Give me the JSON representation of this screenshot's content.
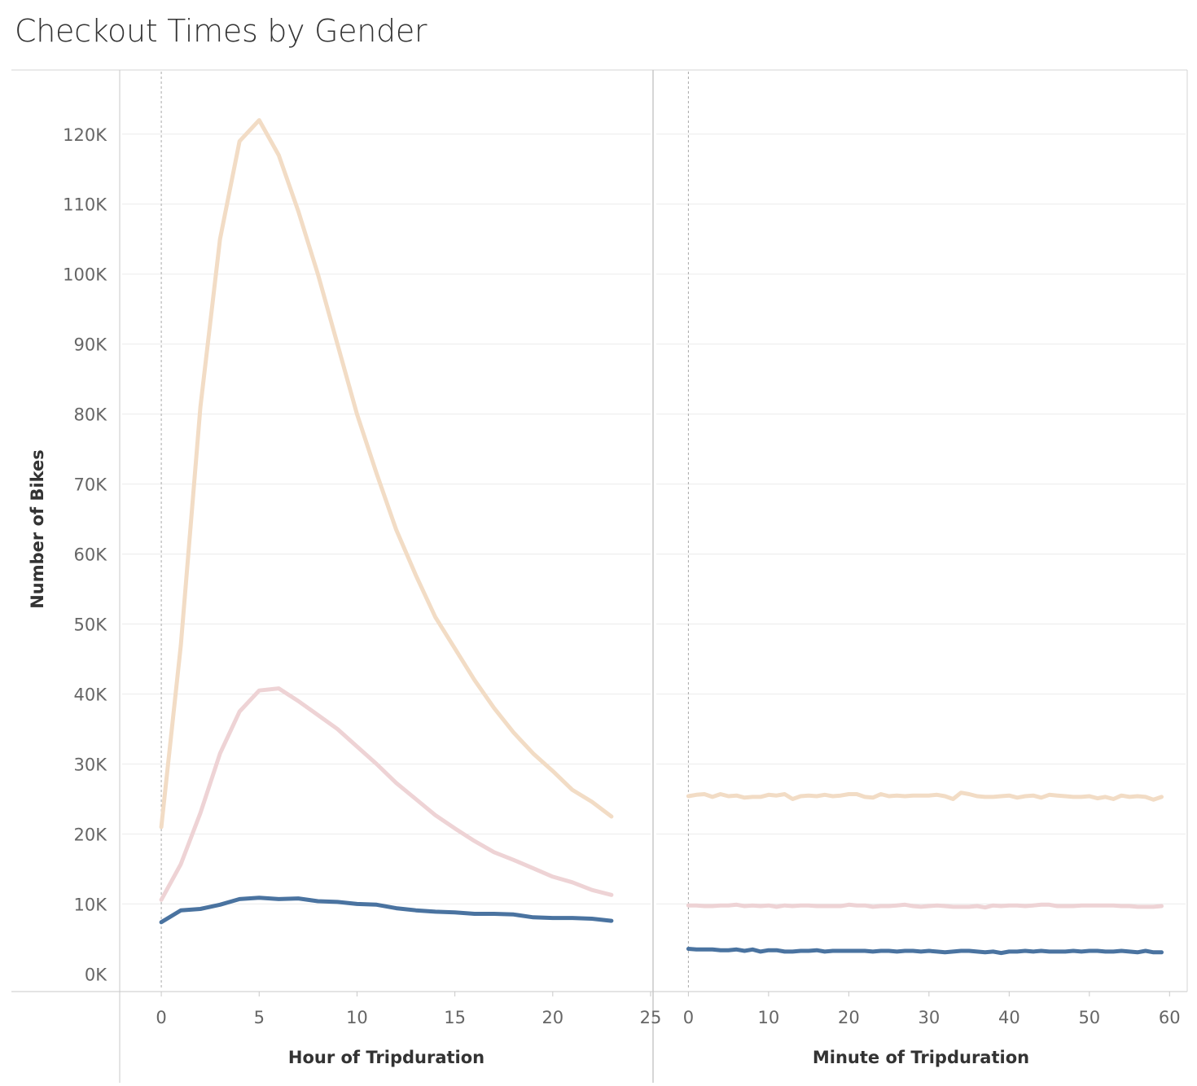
{
  "title": "Checkout Times by Gender",
  "chart_data": [
    {
      "type": "line",
      "xlabel": "Hour of Tripduration",
      "ylabel": "Number of Bikes",
      "xlim": [
        -2,
        25
      ],
      "ylim": [
        -1000,
        128000
      ],
      "xticks": [
        0,
        5,
        10,
        15,
        20,
        25
      ],
      "yticks": [
        0,
        10000,
        20000,
        30000,
        40000,
        50000,
        60000,
        70000,
        80000,
        90000,
        100000,
        110000,
        120000
      ],
      "ytick_labels": [
        "0K",
        "10K",
        "20K",
        "30K",
        "40K",
        "50K",
        "60K",
        "70K",
        "80K",
        "90K",
        "100K",
        "110K",
        "120K"
      ],
      "grid": true,
      "x": [
        0,
        1,
        2,
        3,
        4,
        5,
        6,
        7,
        8,
        9,
        10,
        11,
        12,
        13,
        14,
        15,
        16,
        17,
        18,
        19,
        20,
        21,
        22,
        23
      ],
      "series": [
        {
          "color": "#f2dcc5",
          "values": [
            21000,
            47000,
            81000,
            105000,
            119000,
            122000,
            117000,
            109000,
            100000,
            90000,
            80000,
            71500,
            63500,
            57000,
            51000,
            46500,
            42000,
            38000,
            34500,
            31500,
            29000,
            26300,
            24600,
            22500
          ]
        },
        {
          "color": "#eed3d5",
          "values": [
            10600,
            15700,
            23000,
            31500,
            37500,
            40500,
            40800,
            39000,
            37000,
            35000,
            32500,
            30000,
            27300,
            25000,
            22700,
            20800,
            19000,
            17400,
            16300,
            15100,
            13900,
            13100,
            12000,
            11300
          ]
        },
        {
          "color": "#4a73a0",
          "values": [
            7400,
            9100,
            9300,
            9900,
            10700,
            10900,
            10700,
            10800,
            10400,
            10300,
            10000,
            9900,
            9400,
            9100,
            8900,
            8800,
            8600,
            8600,
            8500,
            8100,
            8000,
            8000,
            7900,
            7600
          ]
        }
      ]
    },
    {
      "type": "line",
      "xlabel": "Minute of Tripduration",
      "ylabel": "Number of Bikes",
      "xlim": [
        -4,
        62
      ],
      "ylim": [
        -1000,
        128000
      ],
      "xticks": [
        0,
        10,
        20,
        30,
        40,
        50,
        60
      ],
      "grid": true,
      "x": [
        0,
        1,
        2,
        3,
        4,
        5,
        6,
        7,
        8,
        9,
        10,
        11,
        12,
        13,
        14,
        15,
        16,
        17,
        18,
        19,
        20,
        21,
        22,
        23,
        24,
        25,
        26,
        27,
        28,
        29,
        30,
        31,
        32,
        33,
        34,
        35,
        36,
        37,
        38,
        39,
        40,
        41,
        42,
        43,
        44,
        45,
        46,
        47,
        48,
        49,
        50,
        51,
        52,
        53,
        54,
        55,
        56,
        57,
        58,
        59
      ],
      "series": [
        {
          "color": "#f2dcc5",
          "values": [
            25400,
            25600,
            25700,
            25300,
            25700,
            25400,
            25500,
            25200,
            25300,
            25300,
            25600,
            25500,
            25700,
            25000,
            25400,
            25500,
            25400,
            25600,
            25400,
            25500,
            25700,
            25700,
            25300,
            25200,
            25700,
            25400,
            25500,
            25400,
            25500,
            25500,
            25500,
            25600,
            25400,
            25000,
            25900,
            25700,
            25400,
            25300,
            25300,
            25400,
            25500,
            25200,
            25400,
            25500,
            25200,
            25600,
            25500,
            25400,
            25300,
            25300,
            25400,
            25100,
            25300,
            25000,
            25500,
            25300,
            25400,
            25300,
            24900,
            25300
          ]
        },
        {
          "color": "#eed3d5",
          "values": [
            9800,
            9800,
            9700,
            9700,
            9800,
            9800,
            9900,
            9700,
            9800,
            9700,
            9800,
            9600,
            9800,
            9700,
            9800,
            9800,
            9700,
            9700,
            9700,
            9700,
            9900,
            9800,
            9800,
            9600,
            9700,
            9700,
            9800,
            9900,
            9700,
            9600,
            9700,
            9800,
            9700,
            9600,
            9600,
            9600,
            9700,
            9500,
            9800,
            9700,
            9800,
            9800,
            9700,
            9800,
            9900,
            9900,
            9700,
            9700,
            9700,
            9800,
            9800,
            9800,
            9800,
            9800,
            9700,
            9700,
            9600,
            9600,
            9600,
            9700
          ]
        },
        {
          "color": "#4a73a0",
          "values": [
            3600,
            3500,
            3500,
            3500,
            3400,
            3400,
            3500,
            3300,
            3500,
            3200,
            3400,
            3400,
            3200,
            3200,
            3300,
            3300,
            3400,
            3200,
            3300,
            3300,
            3300,
            3300,
            3300,
            3200,
            3300,
            3300,
            3200,
            3300,
            3300,
            3200,
            3300,
            3200,
            3100,
            3200,
            3300,
            3300,
            3200,
            3100,
            3200,
            3000,
            3200,
            3200,
            3300,
            3200,
            3300,
            3200,
            3200,
            3200,
            3300,
            3200,
            3300,
            3300,
            3200,
            3200,
            3300,
            3200,
            3100,
            3300,
            3100,
            3100
          ]
        }
      ]
    }
  ]
}
